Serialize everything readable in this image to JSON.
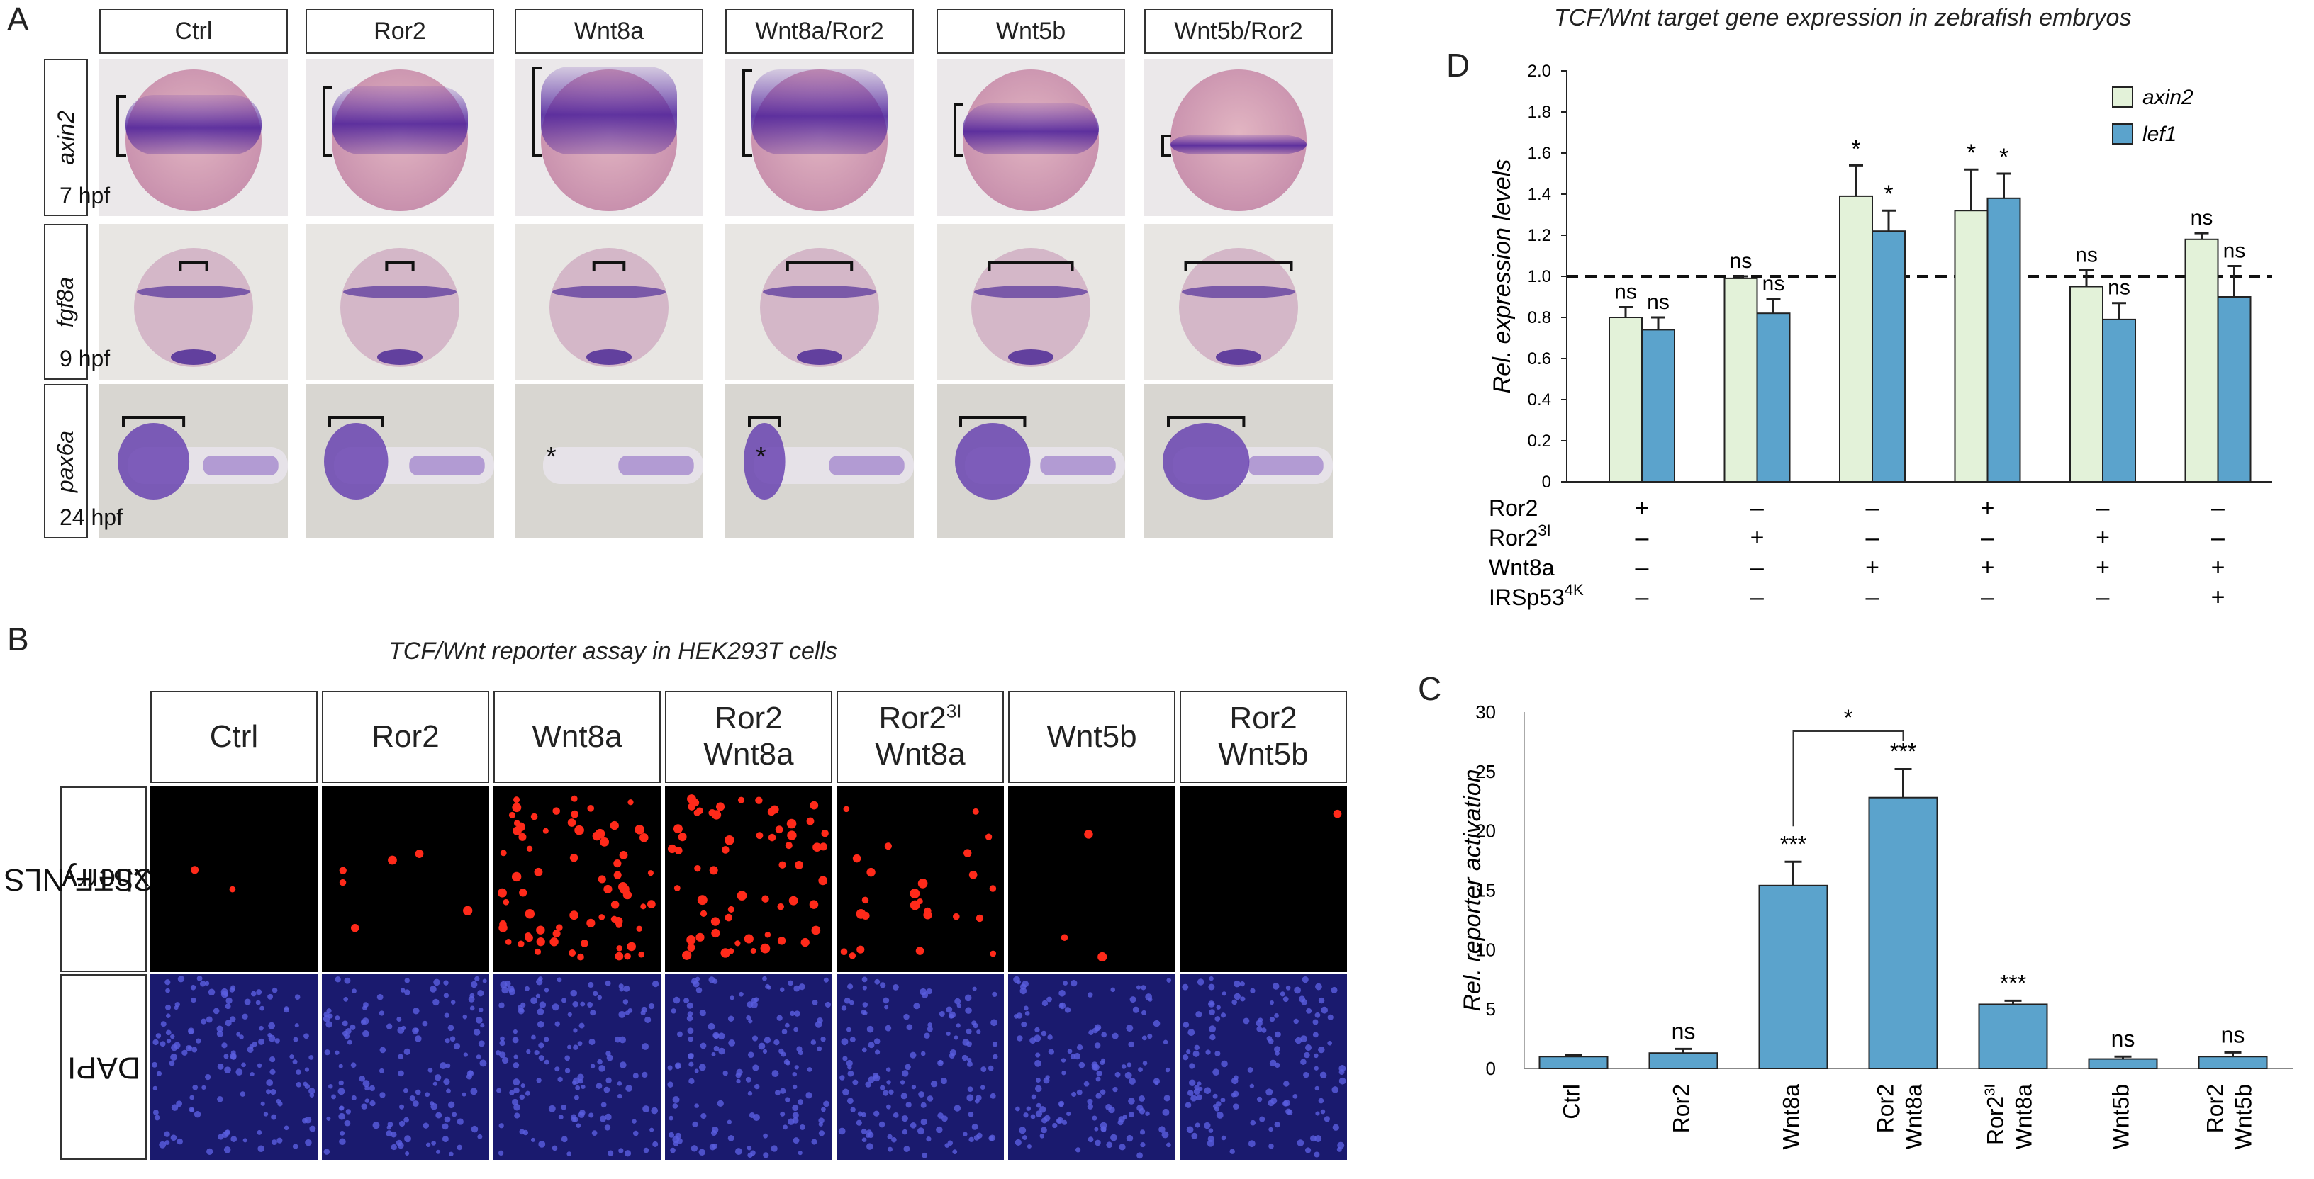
{
  "panel_labels": {
    "a": "A",
    "b": "B",
    "c": "C",
    "d": "D"
  },
  "panel_a": {
    "columns": [
      "Ctrl",
      "Ror2",
      "Wnt8a",
      "Wnt8a/Ror2",
      "Wnt5b",
      "Wnt5b/Ror2"
    ],
    "rows": [
      {
        "gene": "axin2",
        "stage": "7 hpf"
      },
      {
        "gene": "fgf8a",
        "stage": "9 hpf"
      },
      {
        "gene": "pax6a",
        "stage": "24 hpf"
      }
    ],
    "asterisk": "*"
  },
  "panel_b": {
    "title": "TCF/Wnt reporter assay  in HEK293T cells",
    "columns": [
      {
        "line1": "Ctrl",
        "line2": "",
        "sup": ""
      },
      {
        "line1": "Ror2",
        "line2": "",
        "sup": ""
      },
      {
        "line1": "Wnt8a",
        "line2": "",
        "sup": ""
      },
      {
        "line1": "Ror2",
        "line2": "Wnt8a",
        "sup": ""
      },
      {
        "line1": "Ror2",
        "line2": "Wnt8a",
        "sup": "3I"
      },
      {
        "line1": "Wnt5b",
        "line2": "",
        "sup": ""
      },
      {
        "line1": "Ror2",
        "line2": "Wnt5b",
        "sup": ""
      }
    ],
    "rows": [
      {
        "line1": "7xSTF-NLS",
        "line2": "mCherry"
      },
      {
        "line1": "DAPI",
        "line2": ""
      }
    ],
    "colors": {
      "mcherry": "#ff2a1a",
      "dapi_bg": "#1a1a6e",
      "dapi_dot": "#5a5ee0"
    }
  },
  "chart_data": [
    {
      "id": "D",
      "type": "bar",
      "title": "TCF/Wnt target gene expression in zebrafish embryos",
      "ylabel": "Rel. expression levels",
      "ylim": [
        0,
        2.0
      ],
      "yticks": [
        "0",
        "0.2",
        "0.4",
        "0.6",
        "0.8",
        "1.0",
        "1.2",
        "1.4",
        "1.6",
        "1.8",
        "2.0"
      ],
      "reference_line": 1.0,
      "series": [
        {
          "name": "axin2",
          "color": "#e3f2d9",
          "values": [
            0.8,
            0.99,
            1.39,
            1.32,
            0.95,
            1.18
          ],
          "errors": [
            0.05,
            0.01,
            0.15,
            0.2,
            0.08,
            0.03
          ],
          "labels": [
            "ns",
            "ns",
            "*",
            "*",
            "ns",
            "ns"
          ]
        },
        {
          "name": "lef1",
          "color": "#5ba3cc",
          "values": [
            0.74,
            0.82,
            1.22,
            1.38,
            0.79,
            0.9
          ],
          "errors": [
            0.06,
            0.07,
            0.1,
            0.12,
            0.08,
            0.15
          ],
          "labels": [
            "ns",
            "ns",
            "*",
            "*",
            "ns",
            "ns"
          ]
        }
      ],
      "legend_position": "top-right",
      "conditions": [
        {
          "label": "Ror2",
          "sup": "",
          "marks": [
            "+",
            "–",
            "–",
            "+",
            "–",
            "–"
          ]
        },
        {
          "label": "Ror2",
          "sup": "3I",
          "marks": [
            "–",
            "+",
            "–",
            "–",
            "+",
            "–"
          ]
        },
        {
          "label": "Wnt8a",
          "sup": "",
          "marks": [
            "–",
            "–",
            "+",
            "+",
            "+",
            "+"
          ]
        },
        {
          "label": "IRSp53",
          "sup": "4K",
          "marks": [
            "–",
            "–",
            "–",
            "–",
            "–",
            "+"
          ]
        }
      ]
    },
    {
      "id": "C",
      "type": "bar",
      "title": "",
      "ylabel": "Rel. reporter activation",
      "ylim": [
        0,
        30
      ],
      "yticks": [
        "0",
        "5",
        "10",
        "15",
        "20",
        "25",
        "30"
      ],
      "categories": [
        {
          "line1": "Ctrl",
          "line2": "",
          "sup": ""
        },
        {
          "line1": "Ror2",
          "line2": "",
          "sup": ""
        },
        {
          "line1": "Wnt8a",
          "line2": "",
          "sup": ""
        },
        {
          "line1": "Ror2",
          "line2": "Wnt8a",
          "sup": ""
        },
        {
          "line1": "Ror2",
          "line2": "Wnt8a",
          "sup": "3I"
        },
        {
          "line1": "Wnt5b",
          "line2": "",
          "sup": ""
        },
        {
          "line1": "Ror2",
          "line2": "Wnt5b",
          "sup": ""
        }
      ],
      "values": [
        1.0,
        1.3,
        15.4,
        22.8,
        5.4,
        0.8,
        1.0
      ],
      "errors": [
        0.15,
        0.35,
        2.0,
        2.4,
        0.3,
        0.2,
        0.35
      ],
      "labels": [
        "",
        "ns",
        "***",
        "***",
        "***",
        "ns",
        "ns"
      ],
      "bar_color": "#5ba3cc",
      "comparison": {
        "from": 2,
        "to": 3,
        "label": "*"
      }
    }
  ]
}
